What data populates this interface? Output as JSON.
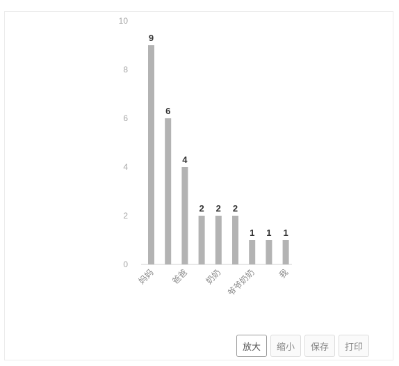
{
  "chart_data": {
    "type": "bar",
    "categories": [
      "妈妈",
      "",
      "爸爸",
      "",
      "奶奶",
      "",
      "爷爷奶奶",
      "",
      "我"
    ],
    "values": [
      9,
      6,
      4,
      2,
      2,
      2,
      1,
      1,
      1
    ],
    "ylim": [
      0,
      10
    ],
    "yticks": [
      0,
      2,
      4,
      6,
      8,
      10
    ],
    "bar_color": "#b3b3b3",
    "data_labels": true,
    "grid": false,
    "legend": "none"
  },
  "toolbar": {
    "buttons": [
      {
        "label": "放大"
      },
      {
        "label": "缩小"
      },
      {
        "label": "保存"
      },
      {
        "label": "打印"
      }
    ]
  }
}
